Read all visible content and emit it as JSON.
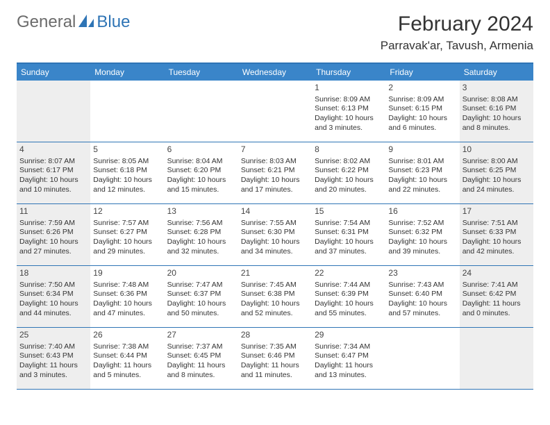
{
  "logo": {
    "text_general": "General",
    "text_blue": "Blue",
    "icon_fill": "#2e74b5"
  },
  "header": {
    "month_title": "February 2024",
    "location": "Parravak'ar, Tavush, Armenia"
  },
  "colors": {
    "header_bg": "#3a85c9",
    "header_border": "#2e74b5",
    "shaded_bg": "#eeeeee"
  },
  "weekdays": [
    "Sunday",
    "Monday",
    "Tuesday",
    "Wednesday",
    "Thursday",
    "Friday",
    "Saturday"
  ],
  "weeks": [
    [
      {
        "day": "",
        "sunrise": "",
        "sunset": "",
        "daylight": "",
        "shaded": true
      },
      {
        "day": "",
        "sunrise": "",
        "sunset": "",
        "daylight": "",
        "shaded": false
      },
      {
        "day": "",
        "sunrise": "",
        "sunset": "",
        "daylight": "",
        "shaded": false
      },
      {
        "day": "",
        "sunrise": "",
        "sunset": "",
        "daylight": "",
        "shaded": false
      },
      {
        "day": "1",
        "sunrise": "Sunrise: 8:09 AM",
        "sunset": "Sunset: 6:13 PM",
        "daylight": "Daylight: 10 hours and 3 minutes.",
        "shaded": false
      },
      {
        "day": "2",
        "sunrise": "Sunrise: 8:09 AM",
        "sunset": "Sunset: 6:15 PM",
        "daylight": "Daylight: 10 hours and 6 minutes.",
        "shaded": false
      },
      {
        "day": "3",
        "sunrise": "Sunrise: 8:08 AM",
        "sunset": "Sunset: 6:16 PM",
        "daylight": "Daylight: 10 hours and 8 minutes.",
        "shaded": true
      }
    ],
    [
      {
        "day": "4",
        "sunrise": "Sunrise: 8:07 AM",
        "sunset": "Sunset: 6:17 PM",
        "daylight": "Daylight: 10 hours and 10 minutes.",
        "shaded": true
      },
      {
        "day": "5",
        "sunrise": "Sunrise: 8:05 AM",
        "sunset": "Sunset: 6:18 PM",
        "daylight": "Daylight: 10 hours and 12 minutes.",
        "shaded": false
      },
      {
        "day": "6",
        "sunrise": "Sunrise: 8:04 AM",
        "sunset": "Sunset: 6:20 PM",
        "daylight": "Daylight: 10 hours and 15 minutes.",
        "shaded": false
      },
      {
        "day": "7",
        "sunrise": "Sunrise: 8:03 AM",
        "sunset": "Sunset: 6:21 PM",
        "daylight": "Daylight: 10 hours and 17 minutes.",
        "shaded": false
      },
      {
        "day": "8",
        "sunrise": "Sunrise: 8:02 AM",
        "sunset": "Sunset: 6:22 PM",
        "daylight": "Daylight: 10 hours and 20 minutes.",
        "shaded": false
      },
      {
        "day": "9",
        "sunrise": "Sunrise: 8:01 AM",
        "sunset": "Sunset: 6:23 PM",
        "daylight": "Daylight: 10 hours and 22 minutes.",
        "shaded": false
      },
      {
        "day": "10",
        "sunrise": "Sunrise: 8:00 AM",
        "sunset": "Sunset: 6:25 PM",
        "daylight": "Daylight: 10 hours and 24 minutes.",
        "shaded": true
      }
    ],
    [
      {
        "day": "11",
        "sunrise": "Sunrise: 7:59 AM",
        "sunset": "Sunset: 6:26 PM",
        "daylight": "Daylight: 10 hours and 27 minutes.",
        "shaded": true
      },
      {
        "day": "12",
        "sunrise": "Sunrise: 7:57 AM",
        "sunset": "Sunset: 6:27 PM",
        "daylight": "Daylight: 10 hours and 29 minutes.",
        "shaded": false
      },
      {
        "day": "13",
        "sunrise": "Sunrise: 7:56 AM",
        "sunset": "Sunset: 6:28 PM",
        "daylight": "Daylight: 10 hours and 32 minutes.",
        "shaded": false
      },
      {
        "day": "14",
        "sunrise": "Sunrise: 7:55 AM",
        "sunset": "Sunset: 6:30 PM",
        "daylight": "Daylight: 10 hours and 34 minutes.",
        "shaded": false
      },
      {
        "day": "15",
        "sunrise": "Sunrise: 7:54 AM",
        "sunset": "Sunset: 6:31 PM",
        "daylight": "Daylight: 10 hours and 37 minutes.",
        "shaded": false
      },
      {
        "day": "16",
        "sunrise": "Sunrise: 7:52 AM",
        "sunset": "Sunset: 6:32 PM",
        "daylight": "Daylight: 10 hours and 39 minutes.",
        "shaded": false
      },
      {
        "day": "17",
        "sunrise": "Sunrise: 7:51 AM",
        "sunset": "Sunset: 6:33 PM",
        "daylight": "Daylight: 10 hours and 42 minutes.",
        "shaded": true
      }
    ],
    [
      {
        "day": "18",
        "sunrise": "Sunrise: 7:50 AM",
        "sunset": "Sunset: 6:34 PM",
        "daylight": "Daylight: 10 hours and 44 minutes.",
        "shaded": true
      },
      {
        "day": "19",
        "sunrise": "Sunrise: 7:48 AM",
        "sunset": "Sunset: 6:36 PM",
        "daylight": "Daylight: 10 hours and 47 minutes.",
        "shaded": false
      },
      {
        "day": "20",
        "sunrise": "Sunrise: 7:47 AM",
        "sunset": "Sunset: 6:37 PM",
        "daylight": "Daylight: 10 hours and 50 minutes.",
        "shaded": false
      },
      {
        "day": "21",
        "sunrise": "Sunrise: 7:45 AM",
        "sunset": "Sunset: 6:38 PM",
        "daylight": "Daylight: 10 hours and 52 minutes.",
        "shaded": false
      },
      {
        "day": "22",
        "sunrise": "Sunrise: 7:44 AM",
        "sunset": "Sunset: 6:39 PM",
        "daylight": "Daylight: 10 hours and 55 minutes.",
        "shaded": false
      },
      {
        "day": "23",
        "sunrise": "Sunrise: 7:43 AM",
        "sunset": "Sunset: 6:40 PM",
        "daylight": "Daylight: 10 hours and 57 minutes.",
        "shaded": false
      },
      {
        "day": "24",
        "sunrise": "Sunrise: 7:41 AM",
        "sunset": "Sunset: 6:42 PM",
        "daylight": "Daylight: 11 hours and 0 minutes.",
        "shaded": true
      }
    ],
    [
      {
        "day": "25",
        "sunrise": "Sunrise: 7:40 AM",
        "sunset": "Sunset: 6:43 PM",
        "daylight": "Daylight: 11 hours and 3 minutes.",
        "shaded": true
      },
      {
        "day": "26",
        "sunrise": "Sunrise: 7:38 AM",
        "sunset": "Sunset: 6:44 PM",
        "daylight": "Daylight: 11 hours and 5 minutes.",
        "shaded": false
      },
      {
        "day": "27",
        "sunrise": "Sunrise: 7:37 AM",
        "sunset": "Sunset: 6:45 PM",
        "daylight": "Daylight: 11 hours and 8 minutes.",
        "shaded": false
      },
      {
        "day": "28",
        "sunrise": "Sunrise: 7:35 AM",
        "sunset": "Sunset: 6:46 PM",
        "daylight": "Daylight: 11 hours and 11 minutes.",
        "shaded": false
      },
      {
        "day": "29",
        "sunrise": "Sunrise: 7:34 AM",
        "sunset": "Sunset: 6:47 PM",
        "daylight": "Daylight: 11 hours and 13 minutes.",
        "shaded": false
      },
      {
        "day": "",
        "sunrise": "",
        "sunset": "",
        "daylight": "",
        "shaded": false
      },
      {
        "day": "",
        "sunrise": "",
        "sunset": "",
        "daylight": "",
        "shaded": true
      }
    ]
  ]
}
